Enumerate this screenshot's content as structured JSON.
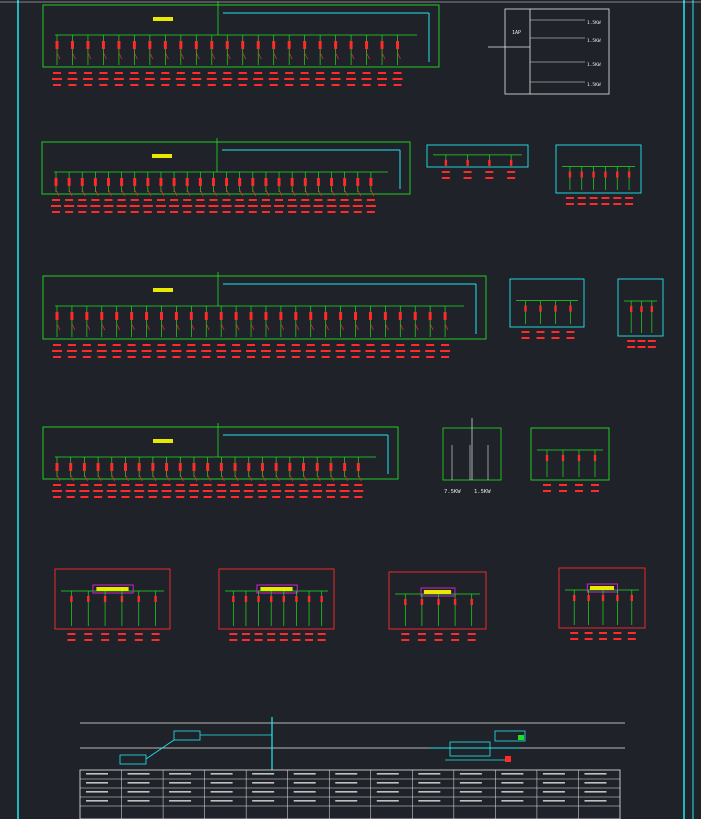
{
  "colors": {
    "background": "#1f2329",
    "green": "#22dd22",
    "red": "#ff2a2a",
    "cyan": "#22e6ee",
    "white": "#e8e8e8",
    "yellow": "#e8e800",
    "magenta": "#d020d0"
  },
  "panels": [
    {
      "id": "1AL1",
      "circuits": 23
    },
    {
      "id": "2AL2",
      "circuits": 25
    },
    {
      "id": "3AL1",
      "circuits": 27
    },
    {
      "id": "4AL2",
      "circuits": 23
    },
    {
      "id": "1AL3",
      "circuits": 6
    },
    {
      "id": "2AL3",
      "circuits": 4
    },
    {
      "id": "1AL4",
      "circuits": 3
    }
  ],
  "top_right_box": {
    "source": "1AP",
    "lines": [
      "1.5KW",
      "1.5KW",
      "1.5KW",
      "1.5KW"
    ]
  },
  "motor_loads": {
    "values": [
      "7.5KW",
      "1.5KW"
    ]
  },
  "distribution": {
    "header_rows": 4,
    "columns": 13
  }
}
